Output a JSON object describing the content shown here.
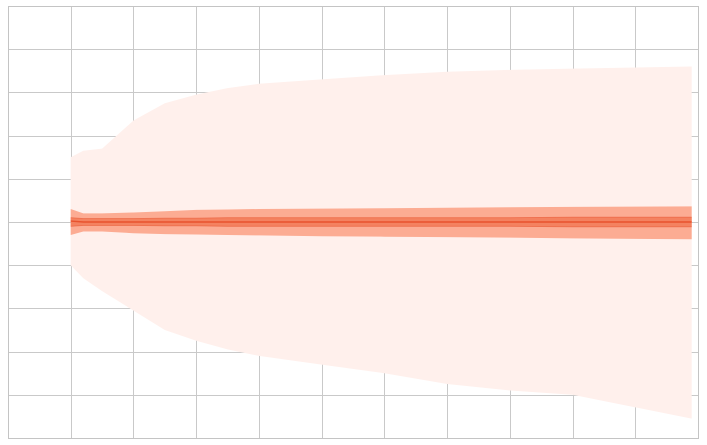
{
  "chart_data": {
    "type": "area",
    "title": "",
    "xlabel": "",
    "ylabel": "",
    "grid": true,
    "legend": "none",
    "xlim": [
      0,
      11
    ],
    "ylim": [
      -5,
      5
    ],
    "x_gridlines": [
      0,
      1,
      2,
      3,
      4,
      5,
      6,
      7,
      8,
      9,
      10,
      11
    ],
    "y_gridlines": [
      -5,
      -4,
      -3,
      -2,
      -1,
      0,
      1,
      2,
      3,
      4,
      5
    ],
    "x": [
      1,
      1.2,
      1.5,
      2,
      2.5,
      3,
      3.5,
      4,
      5,
      6,
      7,
      8,
      9,
      10.9
    ],
    "series": [
      {
        "band": "outer",
        "color": "#fff0ec",
        "upper": [
          1.5,
          1.65,
          1.7,
          2.35,
          2.75,
          2.95,
          3.1,
          3.2,
          3.3,
          3.4,
          3.48,
          3.52,
          3.55,
          3.6
        ],
        "lower": [
          -1.0,
          -1.3,
          -1.6,
          -2.05,
          -2.5,
          -2.75,
          -2.95,
          -3.1,
          -3.3,
          -3.5,
          -3.75,
          -3.9,
          -4.0,
          -4.55
        ]
      },
      {
        "band": "middle",
        "color": "#fcac93",
        "upper": [
          0.3,
          0.2,
          0.2,
          0.22,
          0.25,
          0.28,
          0.29,
          0.3,
          0.31,
          0.32,
          0.33,
          0.34,
          0.35,
          0.36
        ],
        "lower": [
          -0.3,
          -0.22,
          -0.22,
          -0.26,
          -0.28,
          -0.29,
          -0.3,
          -0.31,
          -0.33,
          -0.34,
          -0.35,
          -0.36,
          -0.38,
          -0.4
        ]
      },
      {
        "band": "inner",
        "color": "#f48260",
        "upper": [
          0.1,
          0.08,
          0.08,
          0.08,
          0.09,
          0.09,
          0.1,
          0.1,
          0.1,
          0.1,
          0.1,
          0.1,
          0.11,
          0.11
        ],
        "lower": [
          -0.1,
          -0.08,
          -0.08,
          -0.08,
          -0.09,
          -0.09,
          -0.1,
          -0.1,
          -0.1,
          -0.1,
          -0.1,
          -0.1,
          -0.11,
          -0.11
        ]
      }
    ],
    "center_line": {
      "color": "#e8532e",
      "values": [
        0.02,
        0.0,
        0.0,
        0.0,
        0.0,
        0.0,
        0.0,
        0.0,
        0.0,
        0.0,
        0.0,
        0.0,
        0.0,
        0.0
      ]
    }
  }
}
